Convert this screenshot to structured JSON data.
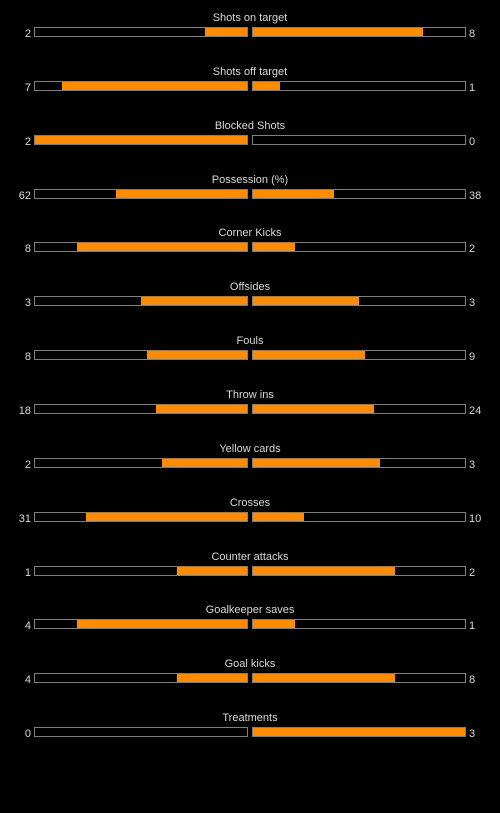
{
  "colors": {
    "background": "#000000",
    "bar_fill": "#ff8c00",
    "bar_border": "#7f7f7f",
    "text": "#d9d9d9"
  },
  "stats": [
    {
      "label": "Shots on target",
      "home": "2",
      "away": "8",
      "home_fill": 0.2,
      "away_fill": 0.8
    },
    {
      "label": "Shots off target",
      "home": "7",
      "away": "1",
      "home_fill": 0.875,
      "away_fill": 0.125
    },
    {
      "label": "Blocked Shots",
      "home": "2",
      "away": "0",
      "home_fill": 1.0,
      "away_fill": 0.0
    },
    {
      "label": "Possession (%)",
      "home": "62",
      "away": "38",
      "home_fill": 0.62,
      "away_fill": 0.38
    },
    {
      "label": "Corner Kicks",
      "home": "8",
      "away": "2",
      "home_fill": 0.8,
      "away_fill": 0.2
    },
    {
      "label": "Offsides",
      "home": "3",
      "away": "3",
      "home_fill": 0.5,
      "away_fill": 0.5
    },
    {
      "label": "Fouls",
      "home": "8",
      "away": "9",
      "home_fill": 0.47,
      "away_fill": 0.53
    },
    {
      "label": "Throw ins",
      "home": "18",
      "away": "24",
      "home_fill": 0.43,
      "away_fill": 0.57
    },
    {
      "label": "Yellow cards",
      "home": "2",
      "away": "3",
      "home_fill": 0.4,
      "away_fill": 0.6
    },
    {
      "label": "Crosses",
      "home": "31",
      "away": "10",
      "home_fill": 0.76,
      "away_fill": 0.24
    },
    {
      "label": "Counter attacks",
      "home": "1",
      "away": "2",
      "home_fill": 0.33,
      "away_fill": 0.67
    },
    {
      "label": "Goalkeeper saves",
      "home": "4",
      "away": "1",
      "home_fill": 0.8,
      "away_fill": 0.2
    },
    {
      "label": "Goal kicks",
      "home": "4",
      "away": "8",
      "home_fill": 0.33,
      "away_fill": 0.67
    },
    {
      "label": "Treatments",
      "home": "0",
      "away": "3",
      "home_fill": 0.0,
      "away_fill": 1.0
    }
  ]
}
